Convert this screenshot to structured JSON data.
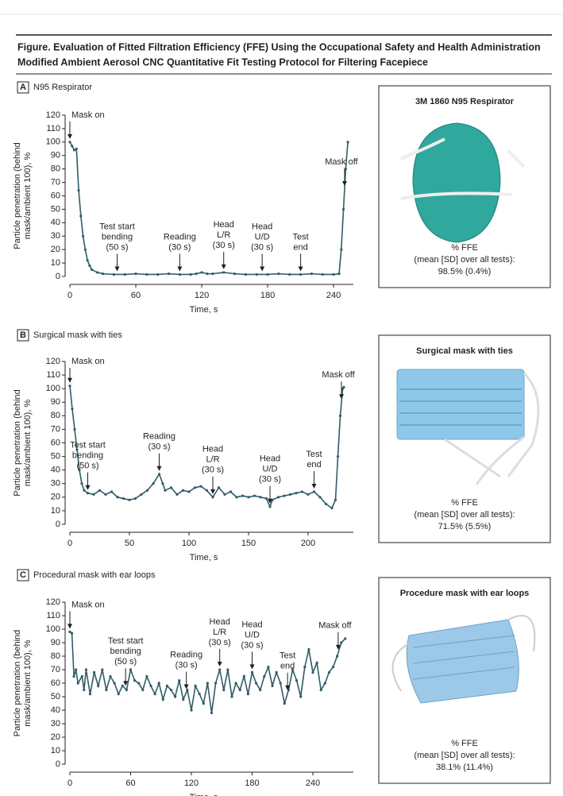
{
  "figure_title": [
    "Figure. Evaluation of Fitted Filtration Efficiency (FFE) Using the Occupational Safety and Health Administration",
    "Modified Ambient Aerosol CNC Quantitative Fit Testing Protocol for Filtering Facepiece"
  ],
  "chart_data": [
    {
      "type": "line",
      "panel": "A",
      "title": "N95 Respirator",
      "color": "#2f5d66",
      "ylabel": [
        "Particle penetration (behind",
        "mask/ambient 100), %"
      ],
      "xlabel": "Time, s",
      "xlim": [
        0,
        258
      ],
      "xticks": [
        0,
        60,
        120,
        180,
        240
      ],
      "ylim": [
        0,
        120
      ],
      "yticks": [
        0,
        10,
        20,
        30,
        40,
        50,
        60,
        70,
        80,
        90,
        100,
        110,
        120
      ],
      "x": [
        0,
        2,
        4,
        6,
        8,
        10,
        12,
        14,
        16,
        18,
        20,
        25,
        30,
        40,
        50,
        60,
        70,
        80,
        90,
        100,
        110,
        115,
        120,
        125,
        130,
        140,
        150,
        160,
        170,
        180,
        190,
        200,
        210,
        220,
        230,
        240,
        245,
        247,
        249,
        251,
        253
      ],
      "values": [
        100,
        97,
        94,
        95,
        64,
        45,
        30,
        20,
        12,
        8,
        5,
        3,
        2,
        1.5,
        1.5,
        2,
        1.5,
        1.5,
        2,
        1.5,
        1.5,
        2,
        3,
        2,
        2,
        3,
        2,
        1.5,
        1.5,
        1.5,
        2,
        1.5,
        1.5,
        2,
        1.5,
        1.5,
        2,
        20,
        50,
        80,
        100
      ],
      "annotations": [
        {
          "lines": [
            "Mask on"
          ],
          "x": 0
        },
        {
          "lines": [
            "Test start",
            "bending",
            "(50 s)"
          ],
          "x": 43
        },
        {
          "lines": [
            "Reading",
            "(30 s)"
          ],
          "x": 100
        },
        {
          "lines": [
            "Head",
            "L/R",
            "(30 s)"
          ],
          "x": 140
        },
        {
          "lines": [
            "Head",
            "U/D",
            "(30 s)"
          ],
          "x": 175
        },
        {
          "lines": [
            "Test",
            "end"
          ],
          "x": 210
        },
        {
          "lines": [
            "Mask off"
          ],
          "x": 250
        }
      ],
      "inset": {
        "title": "3M 1860 N95 Respirator",
        "ffe_label": "% FFE",
        "ffe_note": "(mean [SD] over all tests):",
        "ffe_value": "98.5% (0.4%)"
      }
    },
    {
      "type": "line",
      "panel": "B",
      "title": "Surgical mask with ties",
      "color": "#2f5d66",
      "ylabel": [
        "Particle penetration (behind",
        "mask/ambient 100), %"
      ],
      "xlabel": "Time, s",
      "xlim": [
        0,
        238
      ],
      "xticks": [
        0,
        50,
        100,
        150,
        200
      ],
      "ylim": [
        0,
        120
      ],
      "yticks": [
        0,
        10,
        20,
        30,
        40,
        50,
        60,
        70,
        80,
        90,
        100,
        110,
        120
      ],
      "x": [
        0,
        2,
        4,
        6,
        8,
        10,
        12,
        15,
        20,
        25,
        30,
        35,
        40,
        45,
        50,
        55,
        60,
        65,
        70,
        75,
        78,
        80,
        85,
        90,
        95,
        100,
        105,
        110,
        115,
        120,
        125,
        130,
        135,
        140,
        145,
        150,
        155,
        160,
        165,
        168,
        170,
        175,
        180,
        185,
        190,
        195,
        200,
        205,
        210,
        215,
        220,
        223,
        225,
        227,
        229,
        230
      ],
      "values": [
        102,
        85,
        70,
        55,
        40,
        30,
        25,
        23,
        22,
        25,
        22,
        24,
        20,
        19,
        18,
        19,
        22,
        25,
        30,
        37,
        30,
        25,
        27,
        22,
        25,
        24,
        27,
        28,
        25,
        20,
        27,
        22,
        24,
        20,
        21,
        20,
        21,
        20,
        19,
        13,
        18,
        20,
        21,
        22,
        23,
        24,
        22,
        24,
        20,
        15,
        12,
        18,
        50,
        80,
        100,
        101
      ],
      "annotations": [
        {
          "lines": [
            "Mask on"
          ],
          "x": 0
        },
        {
          "lines": [
            "Test start",
            "bending",
            "(50 s)"
          ],
          "x": 15
        },
        {
          "lines": [
            "Reading",
            "(30 s)"
          ],
          "x": 75
        },
        {
          "lines": [
            "Head",
            "L/R",
            "(30 s)"
          ],
          "x": 120
        },
        {
          "lines": [
            "Head",
            "U/D",
            "(30 s)"
          ],
          "x": 168
        },
        {
          "lines": [
            "Test",
            "end"
          ],
          "x": 205
        },
        {
          "lines": [
            "Mask off"
          ],
          "x": 228
        }
      ],
      "inset": {
        "title": "Surgical mask with ties",
        "ffe_label": "% FFE",
        "ffe_note": "(mean [SD] over all tests):",
        "ffe_value": "71.5% (5.5%)"
      }
    },
    {
      "type": "line",
      "panel": "C",
      "title": "Procedural mask with ear loops",
      "color": "#2f5d66",
      "ylabel": [
        "Particle penetration (behind",
        "mask/ambient 100), %"
      ],
      "xlabel": "Time, s",
      "xlim": [
        0,
        280
      ],
      "xticks": [
        0,
        60,
        120,
        180,
        240
      ],
      "ylim": [
        0,
        120
      ],
      "yticks": [
        0,
        10,
        20,
        30,
        40,
        50,
        60,
        70,
        80,
        90,
        100,
        110,
        120
      ],
      "x": [
        0,
        2,
        4,
        6,
        8,
        12,
        14,
        16,
        20,
        24,
        28,
        32,
        36,
        40,
        44,
        48,
        52,
        56,
        60,
        64,
        68,
        72,
        76,
        80,
        84,
        88,
        92,
        96,
        100,
        104,
        108,
        112,
        116,
        120,
        124,
        128,
        132,
        136,
        140,
        144,
        148,
        152,
        156,
        160,
        164,
        168,
        172,
        176,
        180,
        184,
        188,
        192,
        196,
        200,
        204,
        208,
        212,
        216,
        220,
        224,
        228,
        232,
        236,
        240,
        244,
        248,
        252,
        256,
        260,
        264,
        268,
        272
      ],
      "values": [
        98,
        97,
        65,
        70,
        60,
        65,
        55,
        70,
        52,
        68,
        58,
        70,
        55,
        65,
        60,
        52,
        58,
        55,
        70,
        62,
        60,
        55,
        65,
        58,
        52,
        60,
        48,
        58,
        55,
        50,
        62,
        48,
        55,
        40,
        58,
        52,
        45,
        60,
        38,
        60,
        70,
        55,
        70,
        50,
        60,
        55,
        65,
        52,
        68,
        60,
        55,
        65,
        72,
        58,
        68,
        60,
        45,
        55,
        70,
        62,
        50,
        72,
        85,
        68,
        75,
        55,
        60,
        68,
        72,
        80,
        90,
        93
      ],
      "annotations": [
        {
          "lines": [
            "Mask on"
          ],
          "x": 0
        },
        {
          "lines": [
            "Test start",
            "bending",
            "(50 s)"
          ],
          "x": 55
        },
        {
          "lines": [
            "Reading",
            "(30 s)"
          ],
          "x": 115
        },
        {
          "lines": [
            "Head",
            "L/R",
            "(30 s)"
          ],
          "x": 148
        },
        {
          "lines": [
            "Head",
            "U/D",
            "(30 s)"
          ],
          "x": 180
        },
        {
          "lines": [
            "Test",
            "end"
          ],
          "x": 215
        },
        {
          "lines": [
            "Mask off"
          ],
          "x": 265
        }
      ],
      "inset": {
        "title": "Procedure mask with ear loops",
        "ffe_label": "% FFE",
        "ffe_note": "(mean [SD] over all tests):",
        "ffe_value": "38.1% (11.4%)"
      }
    }
  ]
}
